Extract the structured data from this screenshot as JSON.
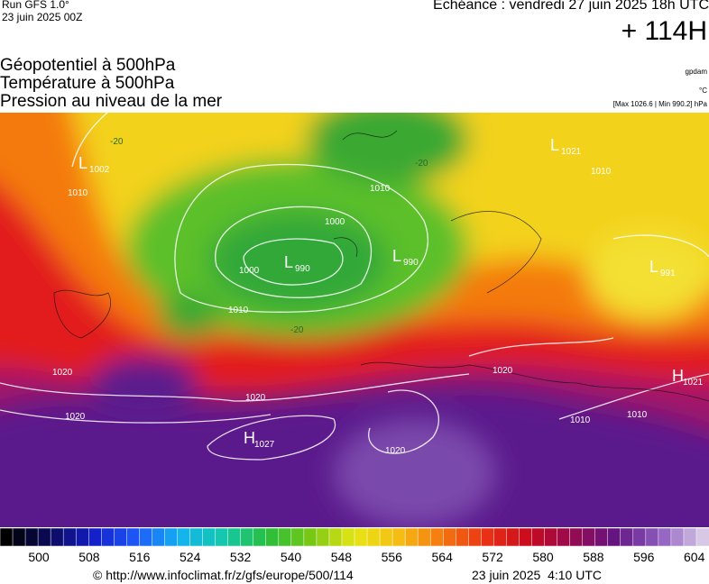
{
  "header": {
    "run": "Run GFS 1.0°",
    "date": "23 juin 2025 00Z",
    "echeance": "Echéance : vendredi 27 juin 2025 18h UTC",
    "lead": "+ 114H",
    "lines": [
      "Géopotentiel à 500hPa",
      "Température à 500hPa",
      "Pression au niveau de la mer"
    ],
    "units": [
      "gpdam",
      "°C",
      "[Max 1026.6 | Min 990.2] hPa"
    ]
  },
  "map": {
    "systems": [
      {
        "letter": "L",
        "value": 1002
      },
      {
        "letter": "L",
        "value": 990
      },
      {
        "letter": "L",
        "value": 990
      },
      {
        "letter": "L",
        "value": 991
      },
      {
        "letter": "L",
        "value": 1021
      },
      {
        "letter": "H",
        "value": 1027
      },
      {
        "letter": "H",
        "value": 1021
      }
    ],
    "labels": [
      1010,
      1010,
      1010,
      1000,
      1000,
      1010,
      1020,
      1020,
      1020,
      1020,
      1020,
      1010,
      1010,
      -20,
      -20,
      -20
    ]
  },
  "colorbar": {
    "ticks": [
      500,
      508,
      516,
      524,
      532,
      540,
      548,
      556,
      564,
      572,
      580,
      588,
      596,
      604
    ]
  },
  "footer": {
    "url": "© http://www.infoclimat.fr/z/gfs/europe/500/114",
    "time": "23 juin 2025  4:10 UTC"
  }
}
